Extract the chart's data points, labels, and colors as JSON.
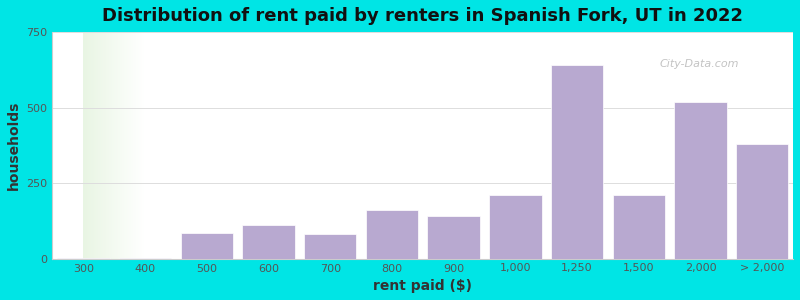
{
  "title": "Distribution of rent paid by renters in Spanish Fork, UT in 2022",
  "xlabel": "rent paid ($)",
  "ylabel": "households",
  "bar_color": "#b8a9d0",
  "background_color": "#00e5e5",
  "plot_bg_colors": [
    "#e8f5e0",
    "#f5f5ff"
  ],
  "bar_edge_color": "none",
  "categories": [
    "300",
    "400",
    "500",
    "600",
    "700",
    "800",
    "900",
    "1,000",
    "1,250",
    "1,500",
    "2,000",
    "> 2,000"
  ],
  "values": [
    2,
    2,
    85,
    110,
    80,
    160,
    140,
    210,
    640,
    210,
    520,
    380
  ],
  "ylim": [
    0,
    750
  ],
  "yticks": [
    0,
    250,
    500,
    750
  ],
  "title_fontsize": 13,
  "axis_label_fontsize": 10,
  "tick_fontsize": 8,
  "grid_color": "#dddddd",
  "watermark_text": "City-Data.com"
}
